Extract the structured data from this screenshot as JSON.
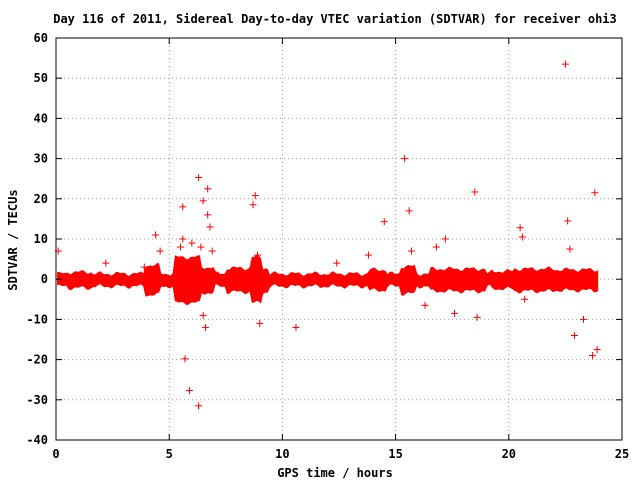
{
  "chart_data": {
    "type": "scatter",
    "title": "Day 116 of 2011, Sidereal Day-to-day VTEC variation (SDTVAR) for receiver ohi3",
    "xlabel": "GPS time / hours",
    "ylabel": "SDTVAR / TECUs",
    "xlim": [
      0,
      25
    ],
    "ylim": [
      -40,
      60
    ],
    "xticks": [
      "0",
      "5",
      "10",
      "15",
      "20",
      "25"
    ],
    "yticks": [
      "-40",
      "-30",
      "-20",
      "-10",
      "0",
      "10",
      "20",
      "30",
      "40",
      "50",
      "60"
    ],
    "grid": true,
    "marker": "+",
    "color": "#ff0000",
    "series": [
      {
        "x": [
          0.1,
          2.2,
          3.9,
          4.4,
          4.6,
          5.5,
          5.6,
          5.6,
          5.7,
          5.9,
          6.0,
          6.2,
          6.3,
          6.4,
          6.5,
          6.6,
          6.7,
          6.7,
          6.8,
          6.9,
          6.3,
          6.5,
          8.7,
          8.8,
          8.9,
          9.0,
          10.6,
          14.5,
          15.4,
          15.6,
          15.7,
          17.2,
          16.8,
          18.5,
          18.6,
          20.5,
          20.6,
          20.7,
          22.5,
          22.6,
          22.7,
          22.9,
          23.3,
          23.7,
          23.8,
          23.9,
          17.6,
          16.3,
          12.4,
          13.8
        ],
        "y": [
          7,
          4,
          3,
          11,
          7,
          8,
          18,
          10,
          -19.8,
          -27.7,
          9,
          5,
          25.3,
          8,
          19.5,
          -12,
          22.5,
          16,
          13,
          7,
          -31.5,
          -9,
          18.5,
          20.8,
          6,
          -11,
          -12,
          14.3,
          30,
          17,
          7,
          10,
          8,
          21.7,
          -9.5,
          12.8,
          10.5,
          -5,
          53.5,
          14.5,
          7.5,
          -14,
          -10,
          -19,
          21.5,
          -17.5,
          -8.5,
          -6.5,
          4,
          6
        ]
      }
    ]
  }
}
